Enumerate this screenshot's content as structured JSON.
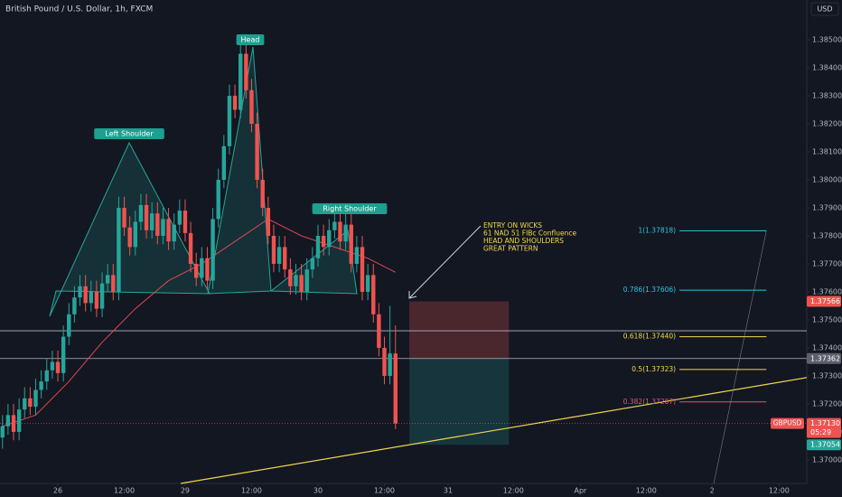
{
  "chart_data": {
    "type": "candlestick",
    "title": "British Pound / U.S. Dollar, 1h, FXCM",
    "currency": "USD",
    "up_color": "#26a69a",
    "down_color": "#ef5350",
    "x": [
      -10,
      -9,
      -8,
      -7,
      -6,
      -5,
      -4,
      -3,
      -2,
      -1,
      0,
      1,
      2,
      3,
      4,
      5,
      6,
      7,
      8,
      9,
      10,
      11,
      12,
      13,
      14,
      15,
      16,
      17,
      18,
      19,
      20,
      21,
      22,
      23,
      24,
      25,
      26,
      27,
      28,
      29,
      30,
      31,
      32,
      33,
      34,
      35,
      36,
      37,
      38,
      39,
      40,
      41,
      42,
      43,
      44,
      45,
      46,
      47,
      48,
      49,
      50,
      51,
      52,
      53,
      54,
      55,
      56,
      57,
      58,
      59,
      60,
      61
    ],
    "open": [
      1.3708,
      1.3712,
      1.3716,
      1.371,
      1.3718,
      1.3722,
      1.3719,
      1.3725,
      1.3728,
      1.3732,
      1.3735,
      1.3731,
      1.3744,
      1.3752,
      1.3758,
      1.3762,
      1.3756,
      1.376,
      1.3754,
      1.3763,
      1.3766,
      1.376,
      1.379,
      1.3783,
      1.3776,
      1.3785,
      1.3791,
      1.3782,
      1.3788,
      1.378,
      1.3786,
      1.3778,
      1.3784,
      1.3789,
      1.3781,
      1.377,
      1.3765,
      1.3772,
      1.3764,
      1.3786,
      1.38,
      1.3812,
      1.383,
      1.3825,
      1.3845,
      1.3832,
      1.382,
      1.38,
      1.379,
      1.378,
      1.377,
      1.3776,
      1.3768,
      1.3762,
      1.3766,
      1.376,
      1.3768,
      1.3772,
      1.378,
      1.3776,
      1.3782,
      1.3785,
      1.3778,
      1.3784,
      1.377,
      1.3776,
      1.376,
      1.3766,
      1.3752,
      1.374,
      1.373,
      1.3738
    ],
    "high": [
      1.3716,
      1.372,
      1.372,
      1.3722,
      1.3726,
      1.3726,
      1.3729,
      1.3732,
      1.3736,
      1.3739,
      1.3739,
      1.3748,
      1.3756,
      1.3762,
      1.3766,
      1.3766,
      1.3764,
      1.3764,
      1.3767,
      1.377,
      1.377,
      1.3794,
      1.3794,
      1.3787,
      1.3789,
      1.3795,
      1.3795,
      1.3792,
      1.3792,
      1.379,
      1.379,
      1.3788,
      1.3793,
      1.3793,
      1.3785,
      1.3774,
      1.3776,
      1.3776,
      1.379,
      1.3804,
      1.3816,
      1.3834,
      1.3834,
      1.3849,
      1.3849,
      1.3836,
      1.3824,
      1.3804,
      1.3794,
      1.3784,
      1.378,
      1.378,
      1.3772,
      1.377,
      1.377,
      1.3772,
      1.3776,
      1.3784,
      1.3784,
      1.3786,
      1.3789,
      1.3789,
      1.3788,
      1.3788,
      1.378,
      1.378,
      1.377,
      1.377,
      1.3756,
      1.3744,
      1.3755,
      1.3748
    ],
    "low": [
      1.3704,
      1.3709,
      1.3707,
      1.3707,
      1.3715,
      1.3716,
      1.3716,
      1.3722,
      1.3725,
      1.3729,
      1.3728,
      1.3728,
      1.3741,
      1.3749,
      1.3755,
      1.3753,
      1.3753,
      1.3751,
      1.3751,
      1.376,
      1.3757,
      1.3757,
      1.378,
      1.3773,
      1.3773,
      1.3782,
      1.3779,
      1.3779,
      1.3777,
      1.3777,
      1.3775,
      1.3775,
      1.3781,
      1.3778,
      1.3767,
      1.3762,
      1.3762,
      1.3761,
      1.3761,
      1.3783,
      1.3797,
      1.3809,
      1.3822,
      1.3822,
      1.3829,
      1.3817,
      1.3797,
      1.3787,
      1.3777,
      1.3767,
      1.3767,
      1.3765,
      1.3759,
      1.3759,
      1.3757,
      1.3757,
      1.3765,
      1.3769,
      1.3773,
      1.3773,
      1.3779,
      1.3775,
      1.3775,
      1.3767,
      1.3767,
      1.3757,
      1.3757,
      1.3749,
      1.3737,
      1.3727,
      1.3727,
      1.3711
    ],
    "close": [
      1.3712,
      1.3716,
      1.371,
      1.3718,
      1.3722,
      1.3719,
      1.3725,
      1.3728,
      1.3732,
      1.3735,
      1.3731,
      1.3744,
      1.3752,
      1.3758,
      1.3762,
      1.3756,
      1.376,
      1.3754,
      1.3763,
      1.3766,
      1.376,
      1.379,
      1.3783,
      1.3776,
      1.3785,
      1.3791,
      1.3782,
      1.3788,
      1.378,
      1.3786,
      1.3778,
      1.3784,
      1.3789,
      1.3781,
      1.377,
      1.3765,
      1.3772,
      1.3764,
      1.3786,
      1.38,
      1.3812,
      1.383,
      1.3825,
      1.3845,
      1.3832,
      1.382,
      1.38,
      1.379,
      1.378,
      1.377,
      1.3776,
      1.3768,
      1.3762,
      1.3766,
      1.376,
      1.3768,
      1.3772,
      1.378,
      1.3776,
      1.3782,
      1.3785,
      1.3778,
      1.3784,
      1.377,
      1.3776,
      1.376,
      1.3766,
      1.3752,
      1.374,
      1.373,
      1.3738,
      1.3713
    ],
    "moving_average": {
      "color": "#e0484e",
      "x": [
        -10,
        -4,
        2,
        8,
        14,
        20,
        26,
        32,
        38,
        44,
        50,
        56,
        61
      ],
      "values": [
        1.3712,
        1.3716,
        1.3728,
        1.3742,
        1.3754,
        1.3764,
        1.377,
        1.3778,
        1.3786,
        1.378,
        1.3776,
        1.3772,
        1.3767
      ]
    },
    "xlim": [
      -10.45,
      135.3
    ],
    "ylim": [
      1.36916,
      1.38642
    ],
    "xticks": [
      {
        "value": 0,
        "label": "26"
      },
      {
        "value": 12,
        "label": "12:00"
      },
      {
        "value": 23,
        "label": "29"
      },
      {
        "value": 35,
        "label": "12:00"
      },
      {
        "value": 47,
        "label": "30"
      },
      {
        "value": 59,
        "label": "12:00"
      },
      {
        "value": 70.5,
        "label": "31"
      },
      {
        "value": 82.3,
        "label": "12:00"
      },
      {
        "value": 94.4,
        "label": "Apr"
      },
      {
        "value": 106.3,
        "label": "12:00"
      },
      {
        "value": 118.2,
        "label": "2"
      },
      {
        "value": 130.3,
        "label": "12:00"
      }
    ],
    "yticks": [
      {
        "value": 1.37,
        "label": "1.37000"
      },
      {
        "value": 1.371,
        "label": "1.37100"
      },
      {
        "value": 1.372,
        "label": "1.37200"
      },
      {
        "value": 1.373,
        "label": "1.37300"
      },
      {
        "value": 1.374,
        "label": "1.37400"
      },
      {
        "value": 1.375,
        "label": "1.37500"
      },
      {
        "value": 1.376,
        "label": "1.37600"
      },
      {
        "value": 1.377,
        "label": "1.37700"
      },
      {
        "value": 1.378,
        "label": "1.37800"
      },
      {
        "value": 1.379,
        "label": "1.37900"
      },
      {
        "value": 1.38,
        "label": "1.38000"
      },
      {
        "value": 1.381,
        "label": "1.38100"
      },
      {
        "value": 1.382,
        "label": "1.38200"
      },
      {
        "value": 1.383,
        "label": "1.38300"
      },
      {
        "value": 1.384,
        "label": "1.38400"
      },
      {
        "value": 1.385,
        "label": "1.38500"
      }
    ],
    "pattern_labels": [
      "Left Shoulder",
      "Head",
      "Right Shoulder"
    ],
    "annotation": [
      "ENTRY ON WICKS",
      "61 NAD 51 FIBc Confluence",
      "HEAD AND SHOULDERS",
      "GREAT PATTERN"
    ],
    "fib_x": [
      112.3,
      128
    ],
    "fib_levels": [
      {
        "value": 1.37818,
        "label": "1(1.37818)",
        "color": "#2ec4e0"
      },
      {
        "value": 1.37606,
        "label": "0.786(1.37606)",
        "color": "#2ec4e0"
      },
      {
        "value": 1.3744,
        "label": "0.618(1.37440)",
        "color": "#f5d94a"
      },
      {
        "value": 1.37323,
        "label": "0.5(1.37323)",
        "color": "#f5d94a"
      },
      {
        "value": 1.37207,
        "label": "0.382(1.37207)",
        "color": "#e25577"
      }
    ],
    "trendline": {
      "color": "#f0d64a",
      "x": [
        22.2,
        135.3
      ],
      "values": [
        1.36916,
        1.37294
      ]
    },
    "guide_line": {
      "color": "#787b86",
      "x": [
        118.5,
        128
      ],
      "values": [
        1.36916,
        1.37818
      ]
    },
    "hline": 1.37461,
    "position": {
      "x": [
        63.5,
        81.5
      ],
      "stop": {
        "value": 1.37566,
        "label": "1.37566"
      },
      "entry": {
        "value": 1.37362,
        "label": "1.37362"
      },
      "target": {
        "value": 1.37054,
        "label": "1.37054"
      }
    },
    "last": {
      "symbol": "GBPUSD",
      "value": 1.3713,
      "label": "1.37130",
      "countdown": "05:29"
    }
  }
}
